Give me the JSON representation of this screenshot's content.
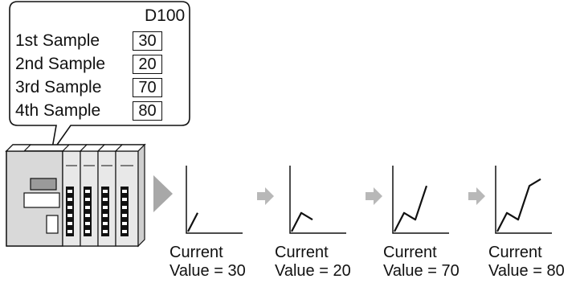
{
  "callout": {
    "device_address": "D100",
    "samples": [
      {
        "label": "1st Sample",
        "value": "30"
      },
      {
        "label": "2nd Sample",
        "value": "20"
      },
      {
        "label": "3rd Sample",
        "value": "70"
      },
      {
        "label": "4th Sample",
        "value": "80"
      }
    ]
  },
  "colors": {
    "line": "#111111",
    "plc_body": "#d9d9d9",
    "plc_screen": "#9a9a9a",
    "arrow_large": "#a8a8a8",
    "arrow_small": "#b8b8b8"
  },
  "graphs": [
    {
      "caption_line1": "Current",
      "caption_line2": "Value = 30",
      "points": [
        30
      ]
    },
    {
      "caption_line1": "Current",
      "caption_line2": "Value = 20",
      "points": [
        30,
        20
      ]
    },
    {
      "caption_line1": "Current",
      "caption_line2": "Value = 70",
      "points": [
        30,
        20,
        70
      ]
    },
    {
      "caption_line1": "Current",
      "caption_line2": "Value = 80",
      "points": [
        30,
        20,
        70,
        80
      ]
    }
  ]
}
